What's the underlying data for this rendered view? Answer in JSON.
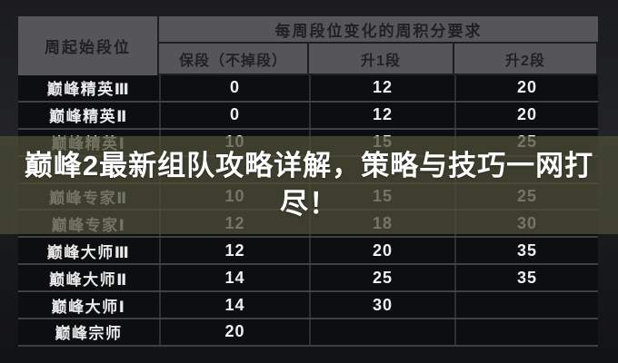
{
  "overlay": {
    "title_line1": "巅峰2最新组队攻略详解，策略与技巧一网打",
    "title_line2": "尽！",
    "banner_color": "#4c4e37",
    "title_color": "#ffffff"
  },
  "table": {
    "header": {
      "start_rank": "周起始段位",
      "group": "每周段位变化的周积分要求",
      "keep": "保段（不掉段）",
      "up1": "升1段",
      "up2": "升2段"
    },
    "rows": [
      {
        "rank": "巅峰精英Ⅲ",
        "keep": "0",
        "up1": "12",
        "up2": "20"
      },
      {
        "rank": "巅峰精英Ⅱ",
        "keep": "0",
        "up1": "12",
        "up2": "20"
      },
      {
        "rank": "巅峰精英Ⅰ",
        "keep": "10",
        "up1": "15",
        "up2": "25"
      },
      {
        "rank": "",
        "keep": "",
        "up1": "",
        "up2": ""
      },
      {
        "rank": "巅峰专家Ⅱ",
        "keep": "10",
        "up1": "15",
        "up2": "25"
      },
      {
        "rank": "巅峰专家Ⅰ",
        "keep": "12",
        "up1": "18",
        "up2": "30"
      },
      {
        "rank": "巅峰大师Ⅲ",
        "keep": "12",
        "up1": "20",
        "up2": "35"
      },
      {
        "rank": "巅峰大师Ⅱ",
        "keep": "14",
        "up1": "25",
        "up2": "35"
      },
      {
        "rank": "巅峰大师Ⅰ",
        "keep": "14",
        "up1": "30",
        "up2": ""
      },
      {
        "rank": "巅峰宗师",
        "keep": "20",
        "up1": "",
        "up2": ""
      }
    ],
    "colors": {
      "header_bg": "#56565a",
      "header_text": "#202124",
      "cell_bg": "#0d0e10",
      "cell_text": "#f0f0f1",
      "grid_line": "#404145"
    }
  }
}
